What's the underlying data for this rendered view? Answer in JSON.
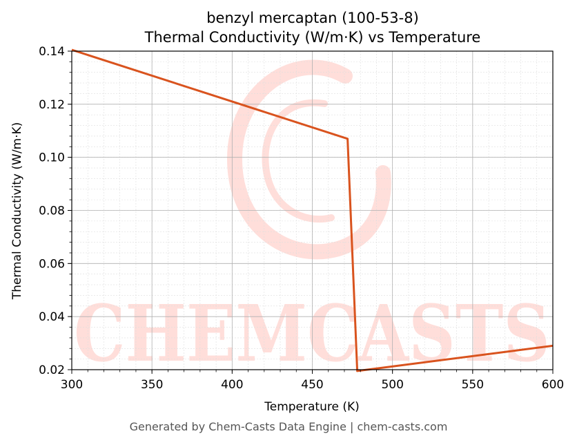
{
  "chart_data": {
    "type": "line",
    "title_line1": "benzyl mercaptan (100-53-8)",
    "title_line2": "Thermal Conductivity (W/m·K) vs Temperature",
    "xlabel": "Temperature (K)",
    "ylabel": "Thermal Conductivity (W/m·K)",
    "xlim": [
      300,
      600
    ],
    "ylim": [
      0.02,
      0.14
    ],
    "xticks": [
      "300",
      "350",
      "400",
      "450",
      "500",
      "550",
      "600"
    ],
    "yticks": [
      "0.02",
      "0.04",
      "0.06",
      "0.08",
      "0.10",
      "0.12",
      "0.14"
    ],
    "grid": true,
    "series": [
      {
        "color": "#d9531e",
        "x": [
          300,
          472,
          478,
          600
        ],
        "y": [
          0.1405,
          0.107,
          0.0195,
          0.029
        ]
      }
    ]
  },
  "watermark": {
    "text": "CHEMCASTS",
    "color": "#ff6e5a"
  },
  "footer": "Generated by Chem-Casts Data Engine | chem-casts.com"
}
